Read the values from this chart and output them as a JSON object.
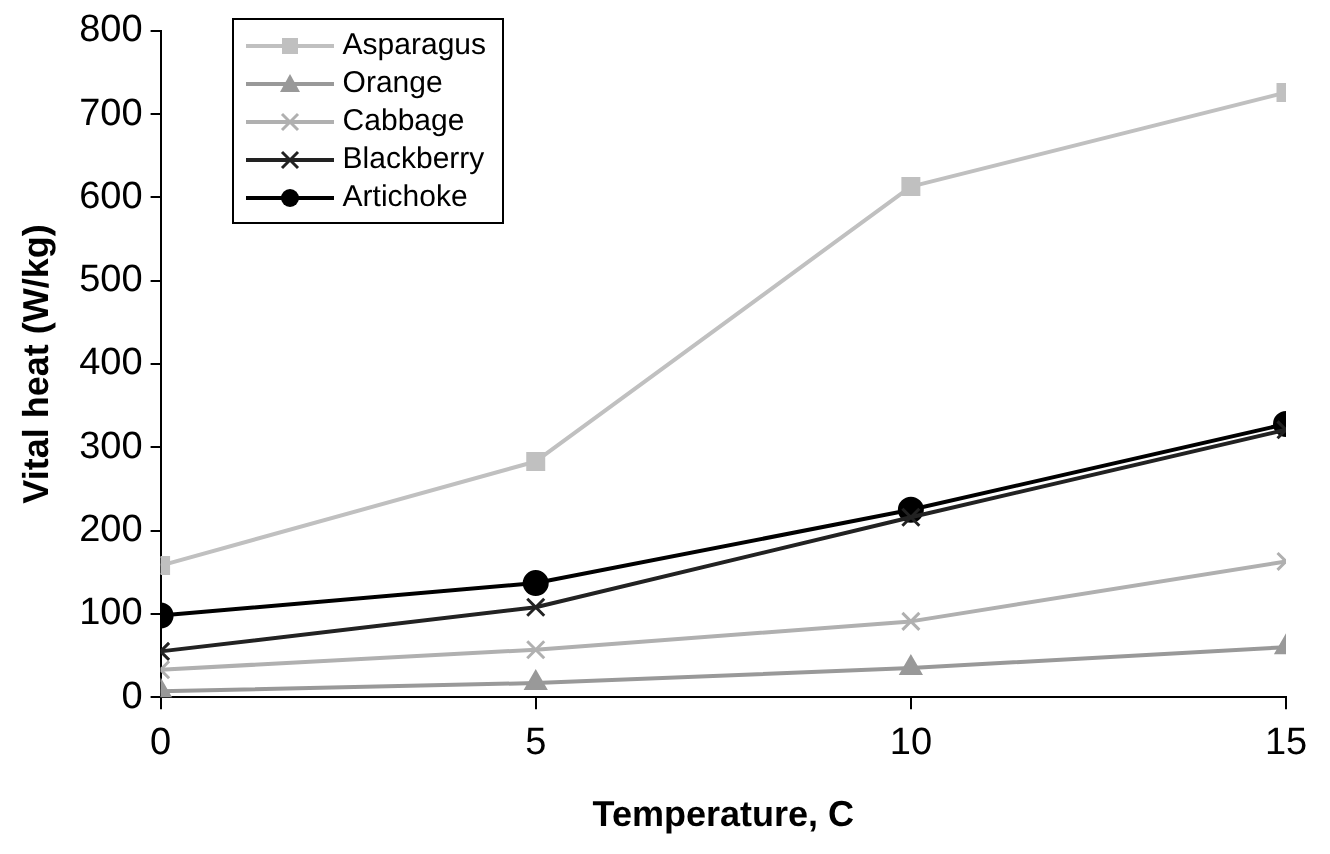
{
  "chart_data": {
    "type": "line",
    "xlabel": "Temperature, C",
    "ylabel": "Vital heat (W/kg)",
    "x": [
      0,
      5,
      10,
      15
    ],
    "series": [
      {
        "name": "Asparagus",
        "color": "#c0c0c0",
        "marker": "square",
        "values": [
          158,
          283,
          613,
          726
        ]
      },
      {
        "name": "Orange",
        "color": "#999999",
        "marker": "triangle",
        "values": [
          7,
          17,
          35,
          60
        ]
      },
      {
        "name": "Cabbage",
        "color": "#b0b0b0",
        "marker": "cross",
        "values": [
          33,
          57,
          91,
          163
        ]
      },
      {
        "name": "Blackberry",
        "color": "#222222",
        "marker": "cross",
        "values": [
          55,
          108,
          216,
          321
        ]
      },
      {
        "name": "Artichoke",
        "color": "#000000",
        "marker": "circle",
        "values": [
          98,
          137,
          225,
          328
        ]
      }
    ],
    "xlim": [
      0,
      15
    ],
    "xticks": [
      0,
      5,
      10,
      15
    ],
    "ylim": [
      0,
      800
    ],
    "yticks": [
      0,
      100,
      200,
      300,
      400,
      500,
      600,
      700,
      800
    ],
    "grid": false,
    "legend": "top left",
    "line_style": "solid"
  }
}
